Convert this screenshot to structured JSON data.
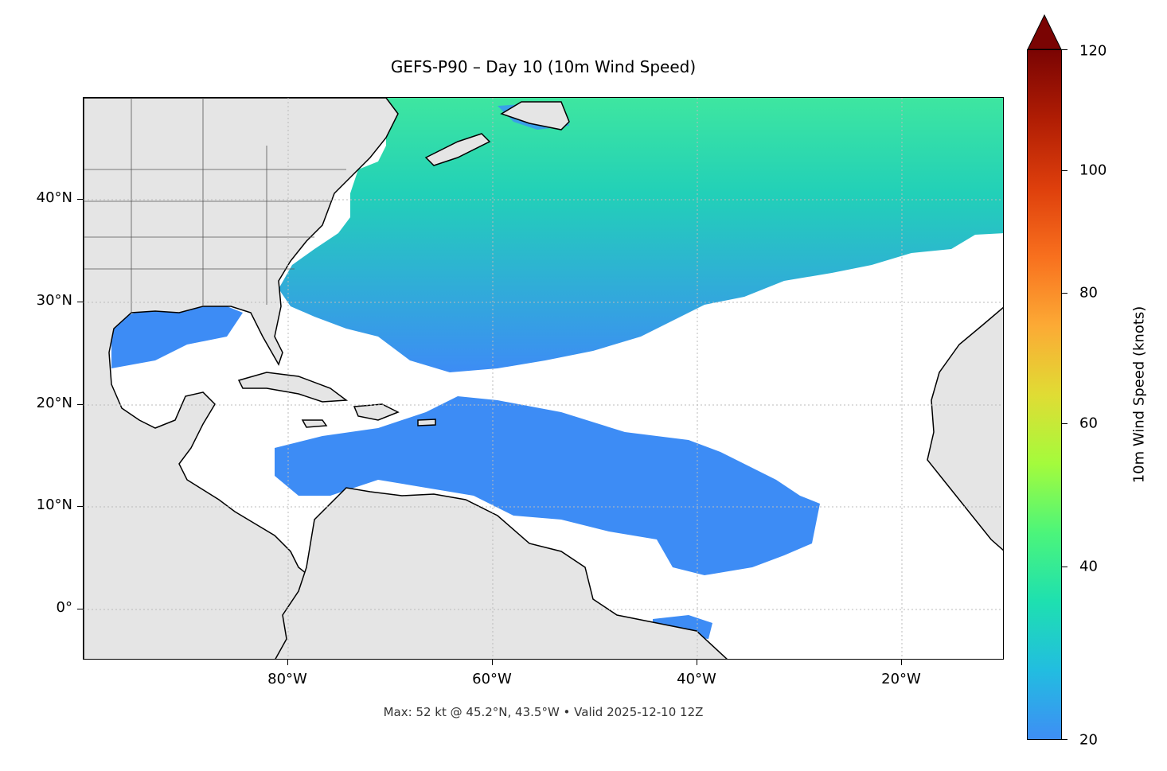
{
  "title": "GEFS-P90 – Day 10 (10m Wind Speed)",
  "footer": "Max: 52 kt @ 45.2°N, 43.5°W • Valid 2025-12-10 12Z",
  "map": {
    "lat_ticks": [
      "40°N",
      "30°N",
      "20°N",
      "10°N",
      "0°"
    ],
    "lon_ticks": [
      "80°W",
      "60°W",
      "40°W",
      "20°W"
    ],
    "land_color": "#e5e5e5",
    "coast_color": "#000000",
    "wind_low_color": "#3d8cf5",
    "wind_mid_color": "#21c8c0",
    "wind_high_color": "#3ee6a0"
  },
  "colorbar": {
    "label": "10m Wind Speed (knots)",
    "ticks": [
      "120",
      "100",
      "80",
      "60",
      "40",
      "20"
    ],
    "min": 20,
    "max": 120,
    "extend": "max",
    "colormap": "turbo"
  }
}
